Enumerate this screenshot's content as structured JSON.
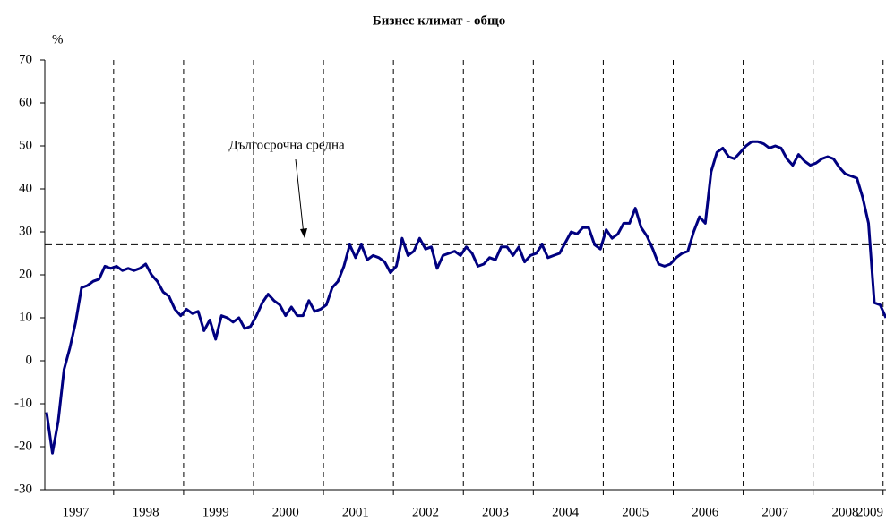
{
  "chart_data": {
    "type": "line",
    "title": "Бизнес климат - общо",
    "y_label": "%",
    "categories": [
      null,
      null,
      null,
      null,
      null,
      "1997",
      null,
      null,
      null,
      null,
      null,
      null,
      null,
      null,
      null,
      null,
      null,
      "1998",
      null,
      null,
      null,
      null,
      null,
      null,
      null,
      null,
      null,
      null,
      null,
      "1999",
      null,
      null,
      null,
      null,
      null,
      null,
      null,
      null,
      null,
      null,
      null,
      "2000",
      null,
      null,
      null,
      null,
      null,
      null,
      null,
      null,
      null,
      null,
      null,
      "2001",
      null,
      null,
      null,
      null,
      null,
      null,
      null,
      null,
      null,
      null,
      null,
      "2002",
      null,
      null,
      null,
      null,
      null,
      null,
      null,
      null,
      null,
      null,
      null,
      "2003",
      null,
      null,
      null,
      null,
      null,
      null,
      null,
      null,
      null,
      null,
      null,
      "2004",
      null,
      null,
      null,
      null,
      null,
      null,
      null,
      null,
      null,
      null,
      null,
      "2005",
      null,
      null,
      null,
      null,
      null,
      null,
      null,
      null,
      null,
      null,
      null,
      "2006",
      null,
      null,
      null,
      null,
      null,
      null,
      null,
      null,
      null,
      null,
      null,
      "2007",
      null,
      null,
      null,
      null,
      null,
      null,
      null,
      null,
      null,
      null,
      null,
      "2008",
      null,
      null,
      null,
      null,
      null,
      null,
      "2009"
    ],
    "series": [
      {
        "name": "Бизнес климат",
        "color": "#000080",
        "values": [
          -12,
          -21.5,
          -14,
          -2,
          3,
          9,
          17,
          17.5,
          18.5,
          19,
          22,
          21.5,
          22,
          21,
          21.5,
          21,
          21.5,
          22.5,
          20,
          18.5,
          16,
          15,
          12,
          10.5,
          12,
          11,
          11.5,
          7,
          9.5,
          5,
          10.5,
          10,
          9,
          10,
          7.5,
          8,
          10.5,
          13.5,
          15.5,
          14,
          13,
          10.5,
          12.5,
          10.5,
          10.5,
          14,
          11.5,
          12,
          13,
          17,
          18.5,
          22,
          27,
          24,
          27,
          23.5,
          24.5,
          24,
          23,
          20.5,
          22,
          28.5,
          24.5,
          25.5,
          28.5,
          26,
          26.5,
          21.5,
          24.5,
          25,
          25.5,
          24.5,
          26.5,
          25,
          22,
          22.5,
          24,
          23.5,
          26.5,
          26.5,
          24.5,
          26.5,
          23,
          24.5,
          25,
          27,
          24,
          24.5,
          25,
          27.5,
          30,
          29.5,
          31,
          31,
          27,
          26,
          30.5,
          28.5,
          29.5,
          32,
          32,
          35.5,
          31,
          29,
          26,
          22.5,
          22,
          22.5,
          24,
          25,
          25.5,
          30,
          33.5,
          32,
          44,
          48.5,
          49.5,
          47.5,
          47,
          48.5,
          50,
          51,
          51,
          50.5,
          49.5,
          50,
          49.5,
          47,
          45.5,
          48,
          46.5,
          45.5,
          46,
          47,
          47.5,
          47,
          45,
          43.5,
          43,
          42.5,
          38,
          32,
          13.5,
          13,
          10
        ]
      }
    ],
    "long_term_average": 27,
    "annotation": "Дългосрочна средна",
    "ylim": [
      -30,
      70
    ],
    "yticks": [
      -30,
      -20,
      -10,
      0,
      10,
      20,
      30,
      40,
      50,
      60,
      70
    ]
  }
}
